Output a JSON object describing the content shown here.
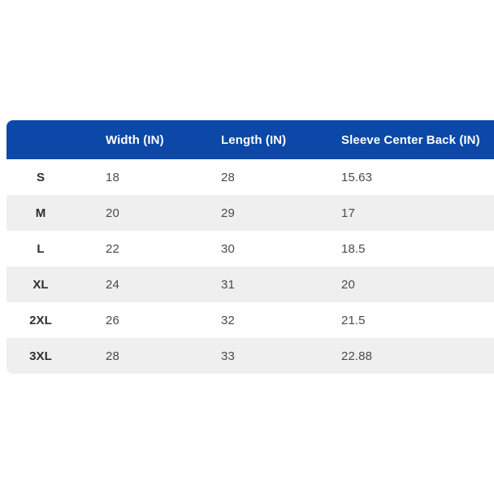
{
  "colors": {
    "header_bg": "#0B48A8",
    "header_text": "#FFFFFF",
    "row_bg": "#FFFFFF",
    "row_alt_bg": "#EFEFEF",
    "size_text": "#2F2F2F",
    "value_text": "#4A4A4A"
  },
  "chart_data": {
    "type": "table",
    "title": "",
    "columns": [
      "",
      "Width (IN)",
      "Length (IN)",
      "Sleeve Center Back (IN)"
    ],
    "rows": [
      [
        "S",
        "18",
        "28",
        "15.63"
      ],
      [
        "M",
        "20",
        "29",
        "17"
      ],
      [
        "L",
        "22",
        "30",
        "18.5"
      ],
      [
        "XL",
        "24",
        "31",
        "20"
      ],
      [
        "2XL",
        "26",
        "32",
        "21.5"
      ],
      [
        "3XL",
        "28",
        "33",
        "22.88"
      ]
    ],
    "layout": {
      "zebra_striping": true,
      "header_position": "top",
      "grid": false
    }
  }
}
